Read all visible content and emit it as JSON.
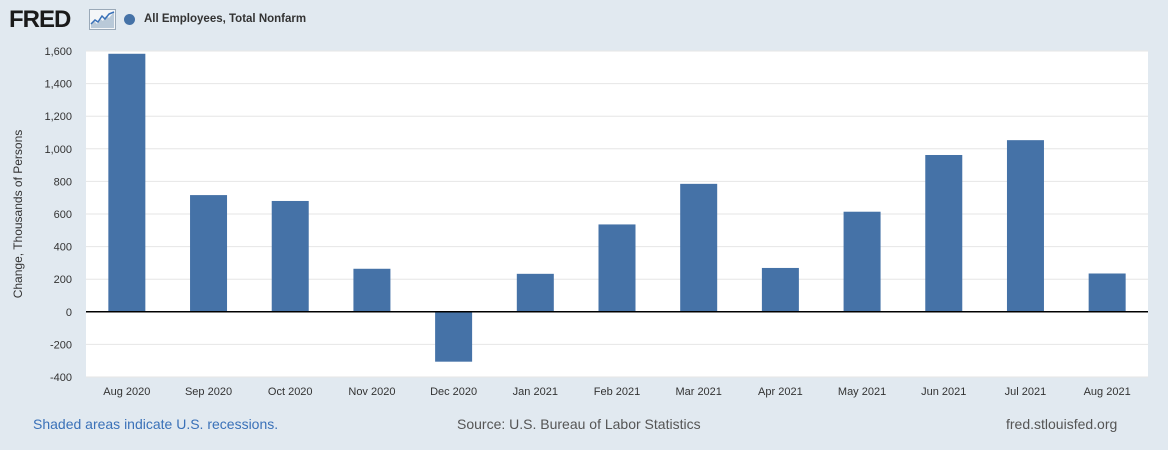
{
  "header": {
    "logo": "FRED",
    "legend_label": "All Employees, Total Nonfarm",
    "series_color": "#4572a7"
  },
  "footer": {
    "recession_note": "Shaded areas indicate U.S. recessions.",
    "source": "Source: U.S. Bureau of Labor Statistics",
    "site": "fred.stlouisfed.org"
  },
  "chart_data": {
    "type": "bar",
    "title": "",
    "xlabel": "",
    "ylabel": "Change, Thousands of Persons",
    "categories": [
      "Aug 2020",
      "Sep 2020",
      "Oct 2020",
      "Nov 2020",
      "Dec 2020",
      "Jan 2021",
      "Feb 2021",
      "Mar 2021",
      "Apr 2021",
      "May 2021",
      "Jun 2021",
      "Jul 2021",
      "Aug 2021"
    ],
    "series": [
      {
        "name": "All Employees, Total Nonfarm",
        "color": "#4572a7",
        "values": [
          1583,
          716,
          680,
          264,
          -306,
          233,
          536,
          785,
          269,
          614,
          962,
          1053,
          235
        ]
      }
    ],
    "ylim": [
      -400,
      1600
    ],
    "yticks": [
      -400,
      -200,
      0,
      200,
      400,
      600,
      800,
      1000,
      1200,
      1400,
      1600
    ],
    "ytick_labels": [
      "-400",
      "-200",
      "0",
      "200",
      "400",
      "600",
      "800",
      "1,000",
      "1,200",
      "1,400",
      "1,600"
    ],
    "grid": true,
    "legend": "top-left"
  }
}
